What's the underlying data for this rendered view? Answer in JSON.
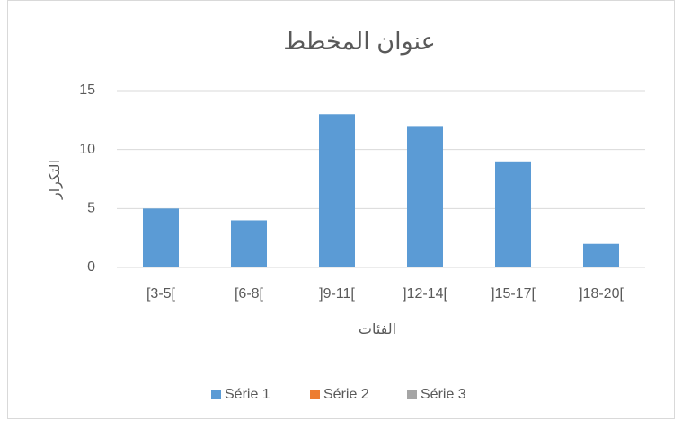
{
  "chart_data": {
    "type": "bar",
    "title": "عنوان المخطط",
    "x_label": "الفئات",
    "y_label": "التكرار",
    "categories": [
      "[3-5[",
      "[6-8[",
      "]9-11[",
      "]12-14[",
      "]15-17[",
      "]18-20["
    ],
    "series": [
      {
        "name": "Série 1",
        "color": "#5b9bd5",
        "values": [
          5,
          4,
          13,
          12,
          9,
          2
        ]
      },
      {
        "name": "Série 2",
        "color": "#ed7d31",
        "values": [
          null,
          null,
          null,
          null,
          null,
          null
        ]
      },
      {
        "name": "Série 3",
        "color": "#a5a5a5",
        "values": [
          null,
          null,
          null,
          null,
          null,
          null
        ]
      }
    ],
    "ylim": [
      0,
      15
    ],
    "yticks": [
      0,
      5,
      10,
      15
    ],
    "grid": true,
    "legend": "bottom"
  }
}
